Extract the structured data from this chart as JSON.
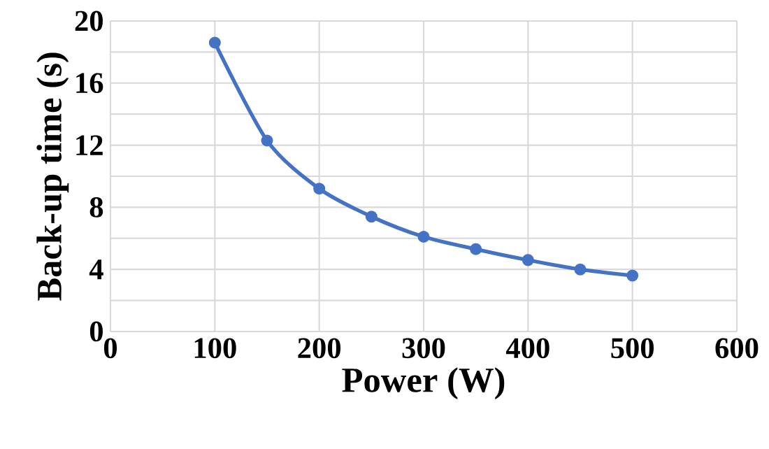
{
  "chart_data": {
    "type": "line",
    "xlabel": "Power (W)",
    "ylabel": "Back-up time (s)",
    "x": [
      100,
      150,
      200,
      250,
      300,
      350,
      400,
      450,
      500
    ],
    "series": [
      {
        "color": "#4472c4",
        "values": [
          18.6,
          12.3,
          9.2,
          7.4,
          6.1,
          5.3,
          4.6,
          4.0,
          3.6
        ]
      }
    ],
    "xlim": [
      0,
      600
    ],
    "xticks": [
      0,
      100,
      200,
      300,
      400,
      500,
      600
    ],
    "ylim": [
      0,
      20
    ],
    "yticks": [
      0,
      4,
      8,
      12,
      16,
      20
    ],
    "grid": true,
    "marker": "circle",
    "line_style": "solid"
  }
}
